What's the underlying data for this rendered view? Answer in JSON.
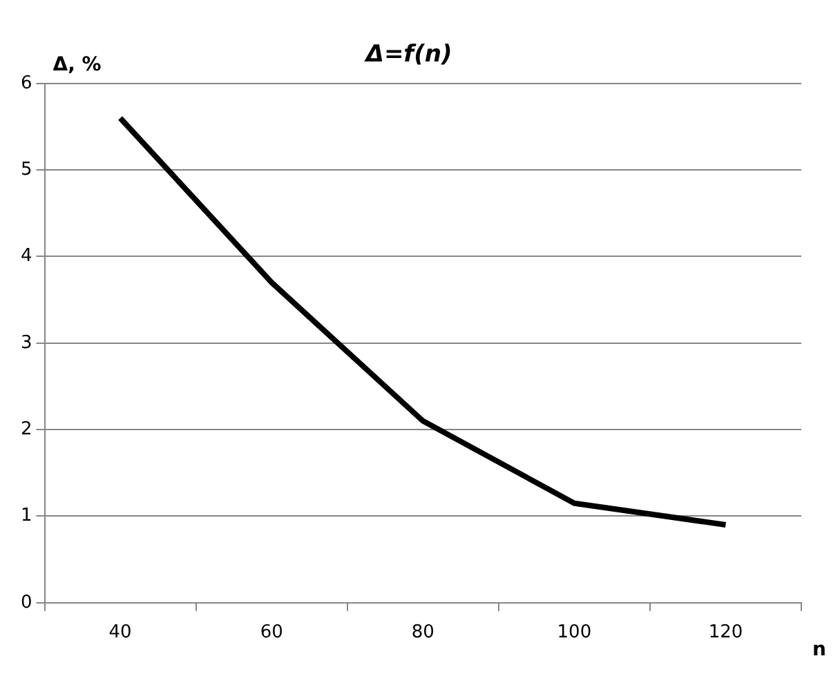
{
  "chart_data": {
    "type": "line",
    "title": "Δ=f(n)",
    "ylabel": "Δ, %",
    "xlabel": "n",
    "categories": [
      "40",
      "60",
      "80",
      "100",
      "120"
    ],
    "series": [
      {
        "color": "#000000",
        "values": [
          5.6,
          3.7,
          2.1,
          1.15,
          0.9
        ]
      }
    ],
    "ylim": [
      0,
      6
    ],
    "yticks": [
      0,
      1,
      2,
      3,
      4,
      5,
      6
    ],
    "grid": "y",
    "marker": "none",
    "line_style": "solid",
    "legend": false
  }
}
